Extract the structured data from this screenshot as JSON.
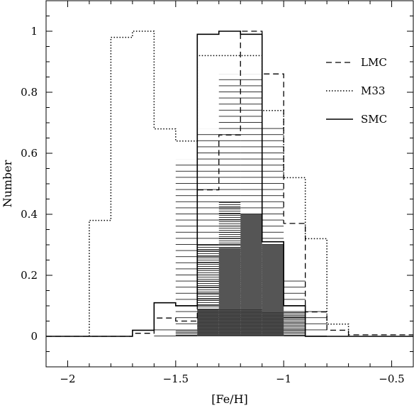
{
  "chart_data": {
    "type": "histogram",
    "title": "",
    "xlabel": "[Fe/H]",
    "ylabel": "Number",
    "xlim": [
      -2.1,
      -0.4
    ],
    "ylim": [
      -0.1,
      1.1
    ],
    "bin_edges": [
      -1.8,
      -1.7,
      -1.6,
      -1.5,
      -1.4,
      -1.3,
      -1.2,
      -1.1,
      -1.0,
      -0.9,
      -0.8,
      -0.7
    ],
    "x_ticks": [
      {
        "value": -2.0,
        "label": "−2"
      },
      {
        "value": -1.5,
        "label": "−1.5"
      },
      {
        "value": -1.0,
        "label": "−1"
      },
      {
        "value": -0.5,
        "label": "−0.5"
      }
    ],
    "y_ticks": [
      {
        "value": 0,
        "label": "0"
      },
      {
        "value": 0.2,
        "label": "0.2"
      },
      {
        "value": 0.4,
        "label": "0.4"
      },
      {
        "value": 0.6,
        "label": "0.6"
      },
      {
        "value": 0.8,
        "label": "0.8"
      },
      {
        "value": 1.0,
        "label": "1"
      }
    ],
    "series": [
      {
        "name": "LMC",
        "style": "dashed",
        "steps": [
          [
            -2.1,
            0
          ],
          [
            -1.7,
            0
          ],
          [
            -1.7,
            0.01
          ],
          [
            -1.6,
            0.01
          ],
          [
            -1.6,
            0.06
          ],
          [
            -1.5,
            0.06
          ],
          [
            -1.5,
            0.05
          ],
          [
            -1.4,
            0.05
          ],
          [
            -1.4,
            0.48
          ],
          [
            -1.3,
            0.48
          ],
          [
            -1.3,
            0.66
          ],
          [
            -1.2,
            0.66
          ],
          [
            -1.2,
            1.0
          ],
          [
            -1.1,
            1.0
          ],
          [
            -1.1,
            0.86
          ],
          [
            -1.0,
            0.86
          ],
          [
            -1.0,
            0.37
          ],
          [
            -0.9,
            0.37
          ],
          [
            -0.9,
            0.08
          ],
          [
            -0.8,
            0.08
          ],
          [
            -0.8,
            0.02
          ],
          [
            -0.7,
            0.02
          ],
          [
            -0.7,
            0.005
          ],
          [
            -0.4,
            0.005
          ]
        ]
      },
      {
        "name": "M33",
        "style": "dotted",
        "steps": [
          [
            -1.9,
            0
          ],
          [
            -1.9,
            0.38
          ],
          [
            -1.8,
            0.38
          ],
          [
            -1.8,
            0.98
          ],
          [
            -1.7,
            0.98
          ],
          [
            -1.7,
            1.0
          ],
          [
            -1.6,
            1.0
          ],
          [
            -1.6,
            0.68
          ],
          [
            -1.5,
            0.68
          ],
          [
            -1.5,
            0.64
          ],
          [
            -1.4,
            0.64
          ],
          [
            -1.4,
            0.92
          ],
          [
            -1.1,
            0.92
          ],
          [
            -1.1,
            0.74
          ],
          [
            -1.0,
            0.74
          ],
          [
            -1.0,
            0.52
          ],
          [
            -0.9,
            0.52
          ],
          [
            -0.9,
            0.32
          ],
          [
            -0.8,
            0.32
          ],
          [
            -0.8,
            0.04
          ],
          [
            -0.7,
            0.04
          ],
          [
            -0.7,
            0.0
          ]
        ]
      },
      {
        "name": "SMC",
        "style": "solid",
        "steps": [
          [
            -2.1,
            0
          ],
          [
            -1.7,
            0
          ],
          [
            -1.7,
            0.02
          ],
          [
            -1.6,
            0.02
          ],
          [
            -1.6,
            0.11
          ],
          [
            -1.5,
            0.11
          ],
          [
            -1.5,
            0.1
          ],
          [
            -1.4,
            0.1
          ],
          [
            -1.4,
            0.99
          ],
          [
            -1.3,
            0.99
          ],
          [
            -1.3,
            1.0
          ],
          [
            -1.2,
            1.0
          ],
          [
            -1.2,
            0.99
          ],
          [
            -1.1,
            0.99
          ],
          [
            -1.1,
            0.31
          ],
          [
            -1.0,
            0.31
          ],
          [
            -1.0,
            0.1
          ],
          [
            -0.9,
            0.1
          ],
          [
            -0.9,
            0.0
          ],
          [
            -0.4,
            0.0
          ]
        ]
      }
    ],
    "hatched_sparse": {
      "bins": [
        [
          -1.6,
          -1.5,
          0.03
        ],
        [
          -1.5,
          -1.4,
          0.58
        ],
        [
          -1.4,
          -1.3,
          0.68
        ],
        [
          -1.3,
          -1.2,
          0.86
        ],
        [
          -1.2,
          -1.1,
          0.86
        ],
        [
          -1.1,
          -1.0,
          0.7
        ],
        [
          -1.0,
          -0.9,
          0.19
        ],
        [
          -0.9,
          -0.8,
          0.1
        ]
      ]
    },
    "hatched_medium": {
      "bins": [
        [
          -1.4,
          -1.3,
          0.3
        ],
        [
          -1.3,
          -1.2,
          0.44
        ],
        [
          -1.2,
          -1.1,
          0.4
        ],
        [
          -1.1,
          -1.0,
          0.3
        ]
      ]
    },
    "filled_dark": {
      "bins": [
        [
          -1.4,
          -1.3,
          0.09
        ],
        [
          -1.3,
          -1.2,
          0.29
        ],
        [
          -1.2,
          -1.1,
          0.4
        ],
        [
          -1.1,
          -1.0,
          0.3
        ]
      ]
    },
    "hatched_dense": {
      "bins": [
        [
          -1.5,
          -1.4,
          0.02
        ],
        [
          -1.4,
          -1.3,
          0.09
        ],
        [
          -1.3,
          -1.2,
          0.09
        ],
        [
          -1.2,
          -1.1,
          0.09
        ],
        [
          -1.1,
          -1.0,
          0.08
        ],
        [
          -1.0,
          -0.9,
          0.08
        ]
      ]
    },
    "legend": {
      "placement": "top-right",
      "entries": [
        {
          "label": "LMC",
          "style": "dashed"
        },
        {
          "label": "M33",
          "style": "dotted"
        },
        {
          "label": "SMC",
          "style": "solid"
        }
      ]
    },
    "grid": false
  }
}
